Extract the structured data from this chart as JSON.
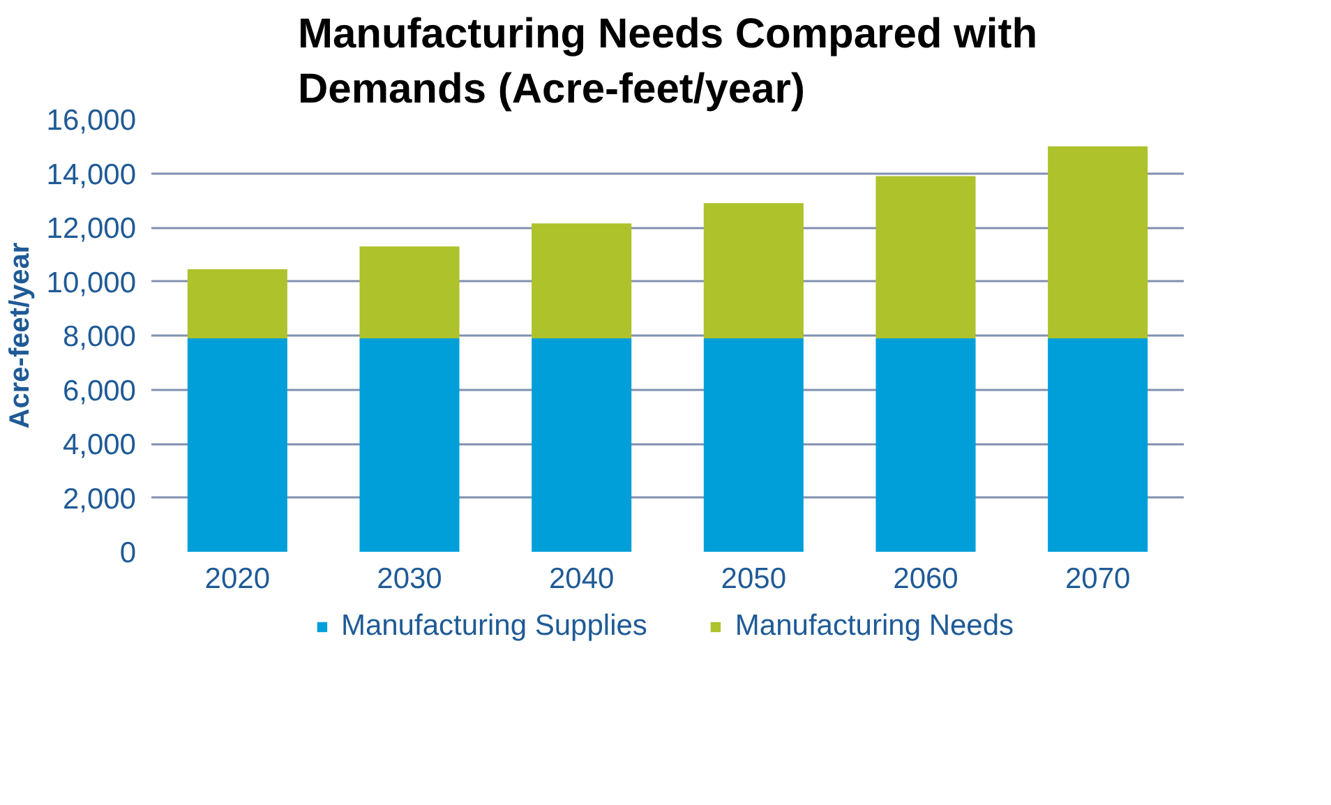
{
  "chart_data": {
    "type": "bar",
    "title": "Manufacturing Needs Compared with Demands (Acre-feet/year)",
    "ylabel": "Acre-feet/year",
    "categories": [
      "2020",
      "2030",
      "2040",
      "2050",
      "2060",
      "2070"
    ],
    "stacked": true,
    "series": [
      {
        "name": "Manufacturing Supplies",
        "color": "#009fda",
        "values": [
          7900,
          7900,
          7900,
          7900,
          7900,
          7900
        ]
      },
      {
        "name": "Manufacturing Needs",
        "color": "#adc22b",
        "values": [
          2550,
          3400,
          4250,
          5000,
          6000,
          7100
        ]
      }
    ],
    "ylim": [
      0,
      16000
    ],
    "yticks": [
      {
        "value": 0,
        "label": "0"
      },
      {
        "value": 2000,
        "label": "2,000"
      },
      {
        "value": 4000,
        "label": "4,000"
      },
      {
        "value": 6000,
        "label": "6,000"
      },
      {
        "value": 8000,
        "label": "8,000"
      },
      {
        "value": 10000,
        "label": "10,000"
      },
      {
        "value": 12000,
        "label": "12,000"
      },
      {
        "value": 14000,
        "label": "14,000"
      },
      {
        "value": 16000,
        "label": "16,000"
      }
    ],
    "grid": "y",
    "legend": "bottom"
  }
}
